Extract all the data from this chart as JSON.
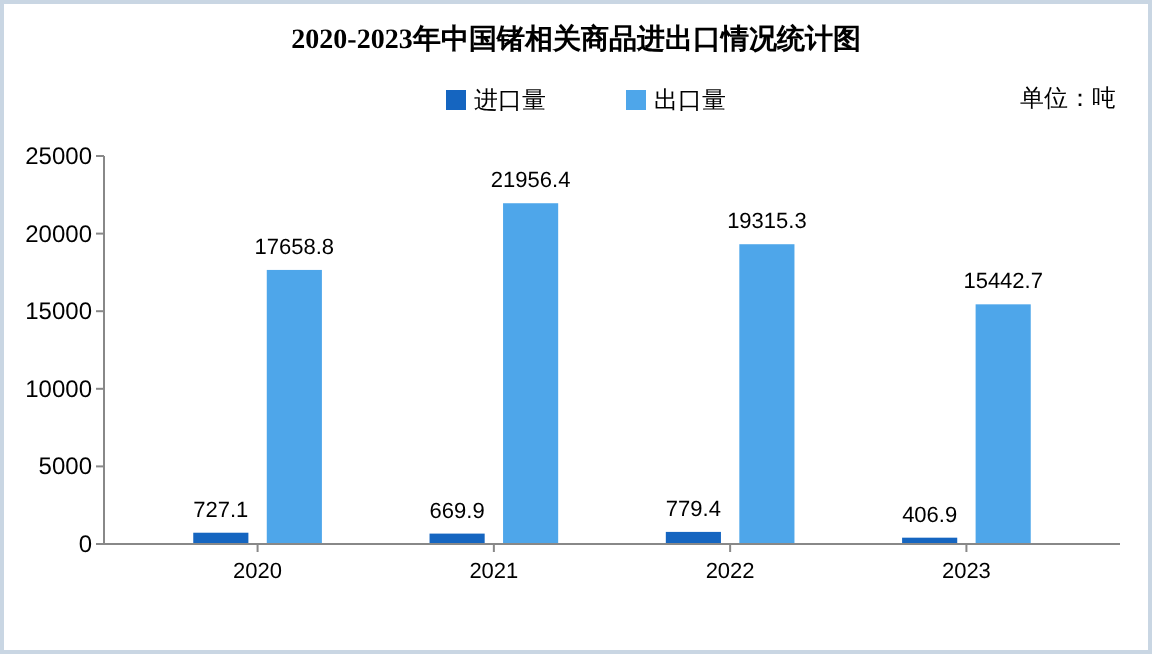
{
  "chart_data": {
    "type": "bar",
    "title": "2020-2023年中国锗相关商品进出口情况统计图",
    "categories": [
      "2020",
      "2021",
      "2022",
      "2023"
    ],
    "series": [
      {
        "name": "进口量",
        "color": "#1565c0",
        "values": [
          727.1,
          669.9,
          779.4,
          406.9
        ]
      },
      {
        "name": "出口量",
        "color": "#4ea6ea",
        "values": [
          17658.8,
          21956.4,
          19315.3,
          15442.7
        ]
      }
    ],
    "ylim": [
      0,
      25000
    ],
    "yticks": [
      0,
      5000,
      10000,
      15000,
      20000,
      25000
    ],
    "data_labels": true,
    "legend": "top",
    "grid": false,
    "annotations": [
      "单位：吨"
    ]
  }
}
